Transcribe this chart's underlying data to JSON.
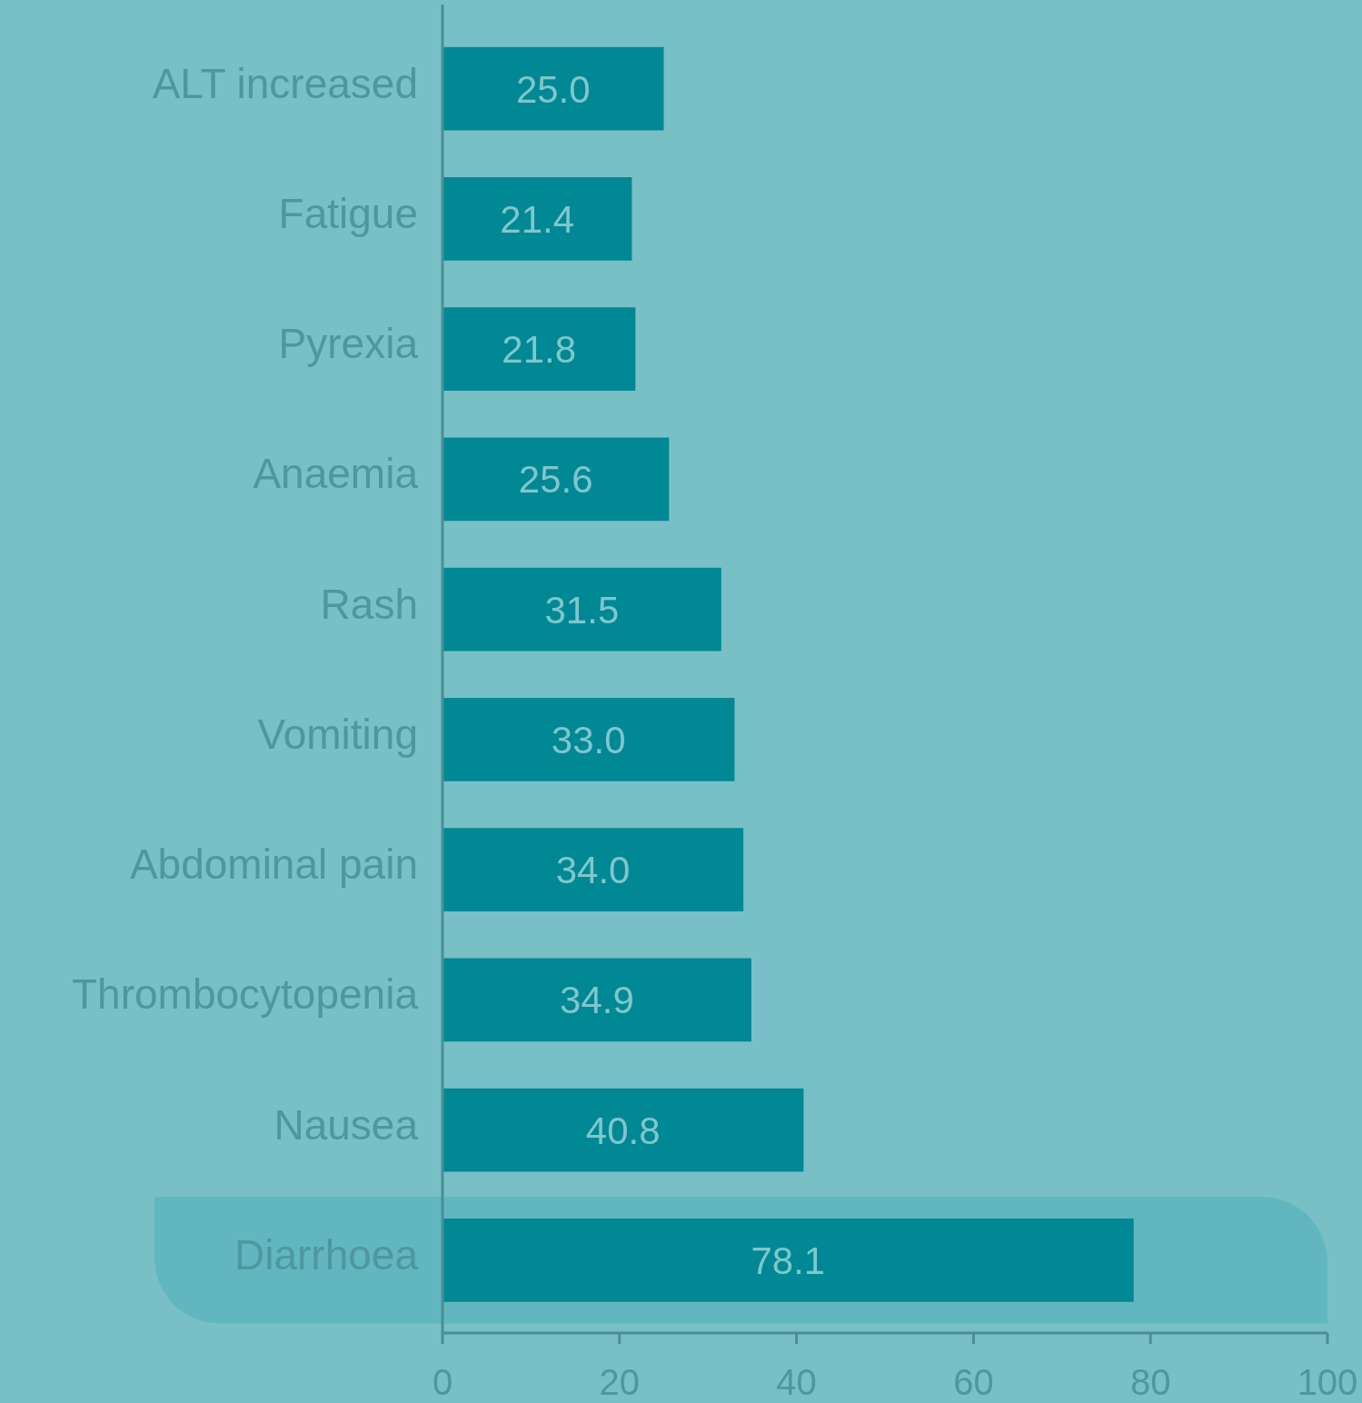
{
  "chart_data": {
    "type": "bar",
    "orientation": "horizontal",
    "categories": [
      "ALT increased",
      "Fatigue",
      "Pyrexia",
      "Anaemia",
      "Rash",
      "Vomiting",
      "Abdominal pain",
      "Thrombocytopenia",
      "Nausea",
      "Diarrhoea"
    ],
    "values": [
      25.0,
      21.4,
      21.8,
      25.6,
      31.5,
      33.0,
      34.0,
      34.9,
      40.8,
      78.1
    ],
    "color": "#008894",
    "xlim": [
      0,
      100
    ],
    "xticks": [
      0,
      20,
      40,
      60,
      80,
      100
    ],
    "value_labels": [
      "25.0",
      "21.4",
      "21.8",
      "25.6",
      "31.5",
      "33.0",
      "34.0",
      "34.9",
      "40.8",
      "78.1"
    ],
    "grid": false,
    "bands": [
      {
        "axis": "y",
        "from": "Diarrhoea",
        "to": "Diarrhoea",
        "color": "#62b6bf"
      }
    ]
  }
}
